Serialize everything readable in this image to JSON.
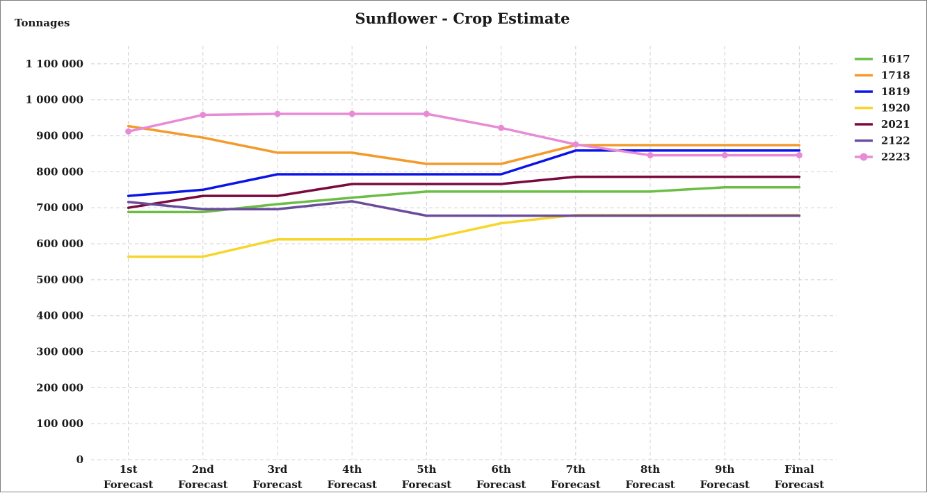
{
  "chart_data": {
    "type": "line",
    "title": "Sunflower - Crop Estimate",
    "ylabel": "Tonnages",
    "xlabel": "",
    "categories": [
      [
        "1st",
        "Forecast"
      ],
      [
        "2nd",
        "Forecast"
      ],
      [
        "3rd",
        "Forecast"
      ],
      [
        "4th",
        "Forecast"
      ],
      [
        "5th",
        "Forecast"
      ],
      [
        "6th",
        "Forecast"
      ],
      [
        "7th",
        "Forecast"
      ],
      [
        "8th",
        "Forecast"
      ],
      [
        "9th",
        "Forecast"
      ],
      [
        "Final",
        "Forecast"
      ]
    ],
    "ylim": [
      0,
      1150000
    ],
    "yticks": [
      0,
      100000,
      200000,
      300000,
      400000,
      500000,
      600000,
      700000,
      800000,
      900000,
      1000000,
      1100000
    ],
    "ytick_labels": [
      "0",
      "100 000",
      "200 000",
      "300 000",
      "400 000",
      "500 000",
      "600 000",
      "700 000",
      "800 000",
      "900 000",
      "1 000 000",
      "1 100 000"
    ],
    "grid": true,
    "legend_position": "right",
    "series": [
      {
        "name": "1617",
        "color": "#6cbd45",
        "marker": false,
        "values": [
          688000,
          688000,
          710000,
          728000,
          745000,
          745000,
          745000,
          745000,
          757000,
          757000
        ]
      },
      {
        "name": "1718",
        "color": "#f39a2b",
        "marker": false,
        "values": [
          927000,
          895000,
          853000,
          853000,
          822000,
          822000,
          874000,
          874000,
          874000,
          874000
        ]
      },
      {
        "name": "1819",
        "color": "#0a14e6",
        "marker": false,
        "values": [
          733000,
          750000,
          793000,
          793000,
          793000,
          793000,
          859000,
          859000,
          859000,
          859000
        ]
      },
      {
        "name": "1920",
        "color": "#f7d52a",
        "marker": false,
        "values": [
          564000,
          564000,
          612000,
          612000,
          612000,
          657000,
          680000,
          680000,
          680000,
          680000
        ]
      },
      {
        "name": "2021",
        "color": "#7a0a3e",
        "marker": false,
        "values": [
          700000,
          733000,
          733000,
          766000,
          766000,
          766000,
          786000,
          786000,
          786000,
          786000
        ]
      },
      {
        "name": "2122",
        "color": "#6a4c9c",
        "marker": false,
        "values": [
          716000,
          696000,
          696000,
          718000,
          678000,
          678000,
          678000,
          678000,
          678000,
          678000
        ]
      },
      {
        "name": "2223",
        "color": "#e88bd6",
        "marker": true,
        "values": [
          912000,
          958000,
          961000,
          961000,
          961000,
          922000,
          876000,
          846000,
          846000,
          846000
        ]
      }
    ]
  }
}
